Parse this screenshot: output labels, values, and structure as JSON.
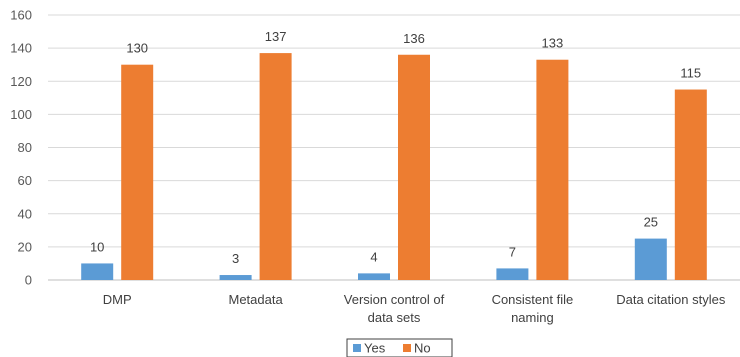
{
  "chart_data": {
    "type": "bar",
    "categories": [
      [
        "DMP"
      ],
      [
        "Metadata"
      ],
      [
        "Version control of",
        "data sets"
      ],
      [
        "Consistent file",
        "naming"
      ],
      [
        "Data citation styles"
      ]
    ],
    "series": [
      {
        "name": "Yes",
        "values": [
          10,
          3,
          4,
          7,
          25
        ],
        "color": "#5b9bd5"
      },
      {
        "name": "No",
        "values": [
          130,
          137,
          136,
          133,
          115
        ],
        "color": "#ed7d31"
      }
    ],
    "ylim": [
      0,
      160
    ],
    "yticks": [
      0,
      20,
      40,
      60,
      80,
      100,
      120,
      140,
      160
    ],
    "grid": true,
    "legend": "bottom-center",
    "data_labels": true
  }
}
